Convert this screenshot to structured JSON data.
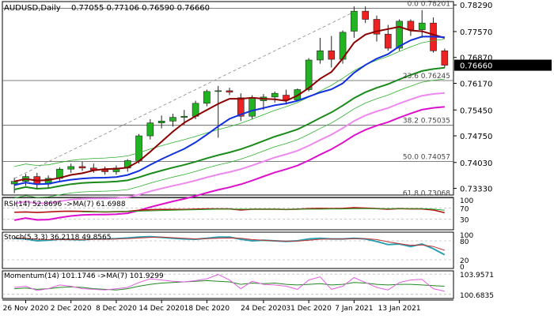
{
  "colors": {
    "bull": "#22b322",
    "bear": "#ee2222",
    "wick": "#222222",
    "ma_red": "#8b0000",
    "ma_blue": "#1030e0",
    "ma_green": "#1a8a1a",
    "ma_pink": "#ee88ee",
    "ma_magenta": "#dd10cc",
    "ma_navy": "#0a1a7a",
    "band": "#2cb02c",
    "level_line": "#555555",
    "price_box": "#000000",
    "rsi": "#b01010",
    "rsi_ma": "#22a022",
    "stoch_k": "#2aa0b0",
    "stoch_d": "#c03030",
    "mom": "#228822",
    "mom_ma": "#e060e0"
  },
  "chart_data": [
    {
      "type": "candlestick",
      "title": "AUDUSD,Daily",
      "ohlc_text": "0.77055 0.77106 0.76590 0.76660",
      "last_price_label": "0.76660",
      "ylim": [
        0.7315,
        0.7838
      ],
      "y_ticks": [
        {
          "v": 0.7829,
          "label": "0.78290"
        },
        {
          "v": 0.7757,
          "label": "0.77570"
        },
        {
          "v": 0.7687,
          "label": "0.76870"
        },
        {
          "v": 0.7617,
          "label": "0.76170"
        },
        {
          "v": 0.7545,
          "label": "0.75450"
        },
        {
          "v": 0.7475,
          "label": "0.74750"
        },
        {
          "v": 0.7403,
          "label": "0.74030"
        },
        {
          "v": 0.7333,
          "label": "0.73330"
        }
      ],
      "fib_levels": [
        {
          "v": 0.78201,
          "label": "0.0 0.78201"
        },
        {
          "v": 0.76245,
          "label": "23.6 0.76245"
        },
        {
          "v": 0.75035,
          "label": "38.2 0.75035"
        },
        {
          "v": 0.74057,
          "label": "50.0 0.74057"
        },
        {
          "v": 0.7307,
          "label": "61.8 0.73068"
        }
      ],
      "x_labels": [
        {
          "i": 1,
          "label": "26 Nov 2020"
        },
        {
          "i": 5,
          "label": "2 Dec 2020"
        },
        {
          "i": 9,
          "label": "8 Dec 2020"
        },
        {
          "i": 13,
          "label": "14 Dec 2020"
        },
        {
          "i": 17,
          "label": "18 Dec 2020"
        },
        {
          "i": 22,
          "label": "24 Dec 2020"
        },
        {
          "i": 26,
          "label": "31 Dec 2020"
        },
        {
          "i": 30,
          "label": "7 Jan 2021"
        },
        {
          "i": 34,
          "label": "13 Jan 2021"
        }
      ],
      "candles": [
        [
          0.7345,
          0.7362,
          0.732,
          0.7352
        ],
        [
          0.7352,
          0.7372,
          0.734,
          0.7365
        ],
        [
          0.7365,
          0.7375,
          0.733,
          0.7345
        ],
        [
          0.7345,
          0.7368,
          0.7335,
          0.736
        ],
        [
          0.736,
          0.739,
          0.735,
          0.7385
        ],
        [
          0.7385,
          0.74,
          0.7375,
          0.7392
        ],
        [
          0.7392,
          0.7405,
          0.738,
          0.7388
        ],
        [
          0.7388,
          0.74,
          0.7375,
          0.7383
        ],
        [
          0.7383,
          0.7392,
          0.737,
          0.7378
        ],
        [
          0.7378,
          0.7395,
          0.737,
          0.7388
        ],
        [
          0.7388,
          0.7412,
          0.7378,
          0.7408
        ],
        [
          0.7408,
          0.748,
          0.74,
          0.7475
        ],
        [
          0.7475,
          0.752,
          0.7465,
          0.751
        ],
        [
          0.751,
          0.753,
          0.7495,
          0.7515
        ],
        [
          0.7515,
          0.7535,
          0.75,
          0.7525
        ],
        [
          0.7525,
          0.7545,
          0.7505,
          0.7528
        ],
        [
          0.7528,
          0.757,
          0.752,
          0.7563
        ],
        [
          0.7563,
          0.76,
          0.7555,
          0.7595
        ],
        [
          0.7595,
          0.761,
          0.747,
          0.7597
        ],
        [
          0.7597,
          0.7605,
          0.7585,
          0.7593
        ],
        [
          0.7578,
          0.759,
          0.7515,
          0.7528
        ],
        [
          0.7528,
          0.7585,
          0.752,
          0.7578
        ],
        [
          0.757,
          0.7588,
          0.7545,
          0.758
        ],
        [
          0.758,
          0.7595,
          0.7565,
          0.759
        ],
        [
          0.7585,
          0.76,
          0.756,
          0.7572
        ],
        [
          0.7572,
          0.7603,
          0.7568,
          0.76
        ],
        [
          0.76,
          0.7685,
          0.7595,
          0.768
        ],
        [
          0.768,
          0.774,
          0.767,
          0.7705
        ],
        [
          0.7705,
          0.7745,
          0.766,
          0.7682
        ],
        [
          0.7682,
          0.776,
          0.767,
          0.7755
        ],
        [
          0.7758,
          0.7825,
          0.774,
          0.7812
        ],
        [
          0.7812,
          0.7825,
          0.778,
          0.779
        ],
        [
          0.779,
          0.78,
          0.773,
          0.775
        ],
        [
          0.775,
          0.7775,
          0.7705,
          0.7712
        ],
        [
          0.7712,
          0.779,
          0.7705,
          0.7785
        ],
        [
          0.7785,
          0.779,
          0.7745,
          0.7762
        ],
        [
          0.7762,
          0.7815,
          0.774,
          0.778
        ],
        [
          0.778,
          0.7795,
          0.77,
          0.7705
        ],
        [
          0.7705,
          0.7711,
          0.7659,
          0.7666
        ]
      ]
    },
    {
      "type": "line",
      "title": "RSI(14) 52.8696  ->MA(7) 61.6988",
      "ylim": [
        0,
        100
      ],
      "y_ticks": [
        {
          "v": 100,
          "label": "100"
        },
        {
          "v": 70,
          "label": "70"
        },
        {
          "v": 30,
          "label": "30"
        }
      ],
      "series": [
        {
          "values": [
            55,
            56,
            54,
            56,
            58,
            59,
            58,
            57,
            56,
            57,
            58,
            62,
            64,
            65,
            65,
            65,
            66,
            67,
            67,
            67,
            63,
            66,
            66,
            66,
            65,
            66,
            68,
            69,
            68,
            69,
            71,
            70,
            68,
            66,
            68,
            67,
            67,
            63,
            53
          ]
        },
        {
          "values": [
            null,
            null,
            null,
            null,
            null,
            null,
            56,
            56,
            57,
            57,
            58,
            59,
            60,
            61,
            62,
            63,
            64,
            65,
            66,
            66,
            66,
            66,
            66,
            66,
            65,
            66,
            66,
            66,
            67,
            67,
            68,
            68,
            68,
            68,
            68,
            68,
            68,
            66,
            62
          ]
        }
      ]
    },
    {
      "type": "line",
      "title": "Stoch(5,3,3) 36.2118 49.8565",
      "ylim": [
        0,
        100
      ],
      "y_ticks": [
        {
          "v": 100,
          "label": "100"
        },
        {
          "v": 80,
          "label": "80"
        },
        {
          "v": 20,
          "label": "20"
        },
        {
          "v": 0,
          "label": "0"
        }
      ],
      "series": [
        {
          "values": [
            88,
            86,
            80,
            82,
            85,
            84,
            83,
            86,
            86,
            87,
            89,
            92,
            93,
            91,
            88,
            86,
            85,
            88,
            92,
            92,
            85,
            80,
            82,
            80,
            78,
            80,
            86,
            88,
            86,
            86,
            88,
            86,
            78,
            68,
            70,
            62,
            70,
            55,
            36
          ]
        },
        {
          "values": [
            90,
            88,
            85,
            84,
            84,
            84,
            84,
            85,
            85,
            86,
            87,
            89,
            91,
            92,
            90,
            88,
            86,
            87,
            88,
            89,
            88,
            84,
            82,
            80,
            79,
            79,
            82,
            85,
            86,
            86,
            87,
            87,
            84,
            77,
            71,
            66,
            67,
            62,
            50
          ]
        }
      ]
    },
    {
      "type": "line",
      "title": "Momentum(14) 101.1746  ->MA(7) 101.9299",
      "ylim": [
        100.4,
        104.1
      ],
      "y_ticks": [
        {
          "v": 103.9571,
          "label": "103.9571"
        },
        {
          "v": 100.6835,
          "label": "100.6835"
        }
      ],
      "series": [
        {
          "values": [
            101.6,
            101.7,
            101.5,
            101.6,
            101.8,
            101.9,
            101.8,
            101.6,
            101.5,
            101.4,
            101.6,
            102.0,
            102.3,
            102.5,
            102.6,
            102.7,
            102.8,
            102.9,
            102.8,
            102.7,
            102.3,
            102.5,
            102.4,
            102.5,
            102.3,
            102.2,
            102.3,
            102.4,
            102.2,
            102.3,
            102.6,
            102.5,
            102.3,
            102.2,
            102.3,
            102.3,
            102.2,
            102.1,
            102.0
          ]
        },
        {
          "values": [
            101.8,
            102.0,
            101.3,
            101.6,
            102.2,
            102.0,
            101.6,
            101.5,
            101.4,
            101.6,
            101.8,
            102.6,
            103.2,
            103.0,
            102.8,
            102.7,
            102.9,
            103.2,
            103.9,
            103.0,
            101.6,
            102.8,
            102.3,
            102.2,
            102.0,
            101.5,
            103.0,
            103.5,
            101.5,
            102.0,
            103.4,
            102.6,
            101.8,
            101.4,
            102.6,
            103.0,
            103.1,
            101.6,
            101.2
          ]
        }
      ]
    }
  ]
}
